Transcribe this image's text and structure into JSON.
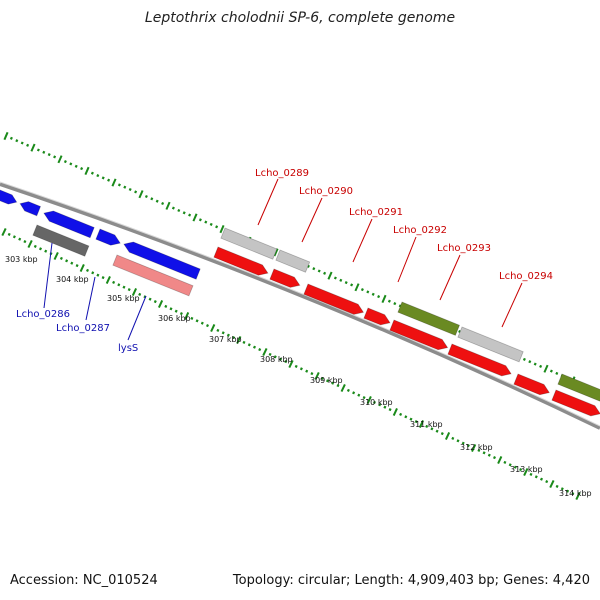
{
  "title": "Leptothrix cholodnii SP-6, complete genome",
  "footer": {
    "accession": "Accession: NC_010524",
    "summary": "Topology: circular; Length: 4,909,403 bp; Genes: 4,420"
  },
  "colors": {
    "blue": "#1010e8",
    "red": "#ee1010",
    "gray": "#666666",
    "lightgray": "#c4c4c4",
    "pink": "#f08888",
    "olive": "#6a8a22",
    "tick": "#1a8a1a",
    "backbone": "#8c8c8c",
    "label_blue": "#1010b0",
    "label_red": "#c80000"
  },
  "kbp_labels": [
    "303 kbp",
    "304 kbp",
    "305 kbp",
    "306 kbp",
    "307 kbp",
    "308 kbp",
    "309 kbp",
    "310 kbp",
    "311 kbp",
    "312 kbp",
    "313 kbp",
    "314 kbp"
  ],
  "gene_labels": {
    "lcho_0286": "Lcho_0286",
    "lcho_0287": "Lcho_0287",
    "lyss": "lysS",
    "lcho_0289": "Lcho_0289",
    "lcho_0290": "Lcho_0290",
    "lcho_0291": "Lcho_0291",
    "lcho_0292": "Lcho_0292",
    "lcho_0293": "Lcho_0293",
    "lcho_0294": "Lcho_0294"
  }
}
